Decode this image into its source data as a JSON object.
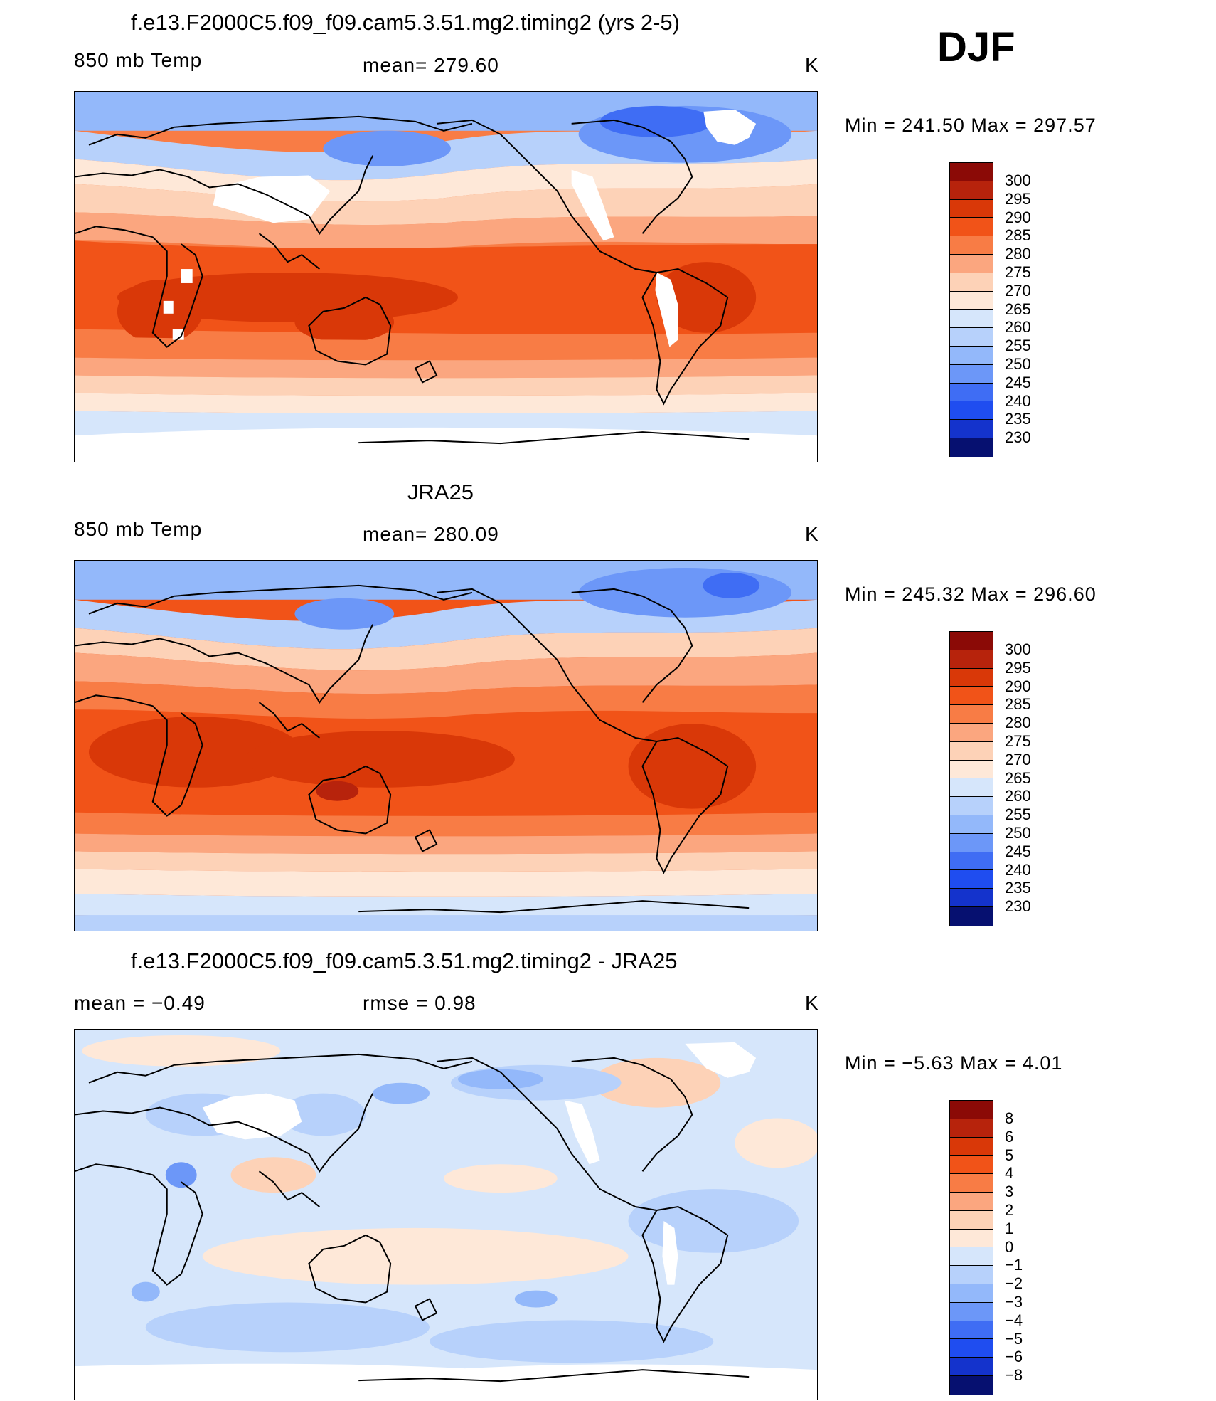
{
  "season": "DJF",
  "colors": {
    "abs_scale": [
      "#8b0a06",
      "#b7230c",
      "#d93808",
      "#f15318",
      "#f87c45",
      "#fba67f",
      "#fdd2b7",
      "#fee8d8",
      "#d6e6fb",
      "#b7d1fb",
      "#93b8fa",
      "#6c97f8",
      "#3f6df4",
      "#1f4df0",
      "#1433cc",
      "#0c1e99",
      "#061070"
    ],
    "diff_scale": [
      "#8b0a06",
      "#b7230c",
      "#d93808",
      "#f15318",
      "#f87c45",
      "#fba67f",
      "#fdd2b7",
      "#fee8d8",
      "#d6e6fb",
      "#b7d1fb",
      "#93b8fa",
      "#6c97f8",
      "#3f6df4",
      "#1f4df0",
      "#1433cc",
      "#0c1e99",
      "#061070"
    ]
  },
  "panels": [
    {
      "title": "f.e13.F2000C5.f09_f09.cam5.3.51.mg2.timing2 (yrs 2-5)",
      "left_label": "850 mb Temp",
      "center_label": "mean=  279.60",
      "units": "K",
      "minmax": "Min  =  241.50  Max  =  297.57",
      "colorbar_labels": [
        "300",
        "295",
        "290",
        "285",
        "280",
        "275",
        "270",
        "265",
        "260",
        "255",
        "250",
        "245",
        "240",
        "235",
        "230"
      ]
    },
    {
      "title": "JRA25",
      "left_label": "850 mb Temp",
      "center_label": "mean=  280.09",
      "units": "K",
      "minmax": "Min  =  245.32  Max  =  296.60",
      "colorbar_labels": [
        "300",
        "295",
        "290",
        "285",
        "280",
        "275",
        "270",
        "265",
        "260",
        "255",
        "250",
        "245",
        "240",
        "235",
        "230"
      ]
    },
    {
      "title": "f.e13.F2000C5.f09_f09.cam5.3.51.mg2.timing2 - JRA25",
      "left_label": "mean  =    −0.49",
      "center_label": "rmse  =     0.98",
      "units": "K",
      "minmax": "Min  =    −5.63  Max  =      4.01",
      "colorbar_labels": [
        "8",
        "6",
        "5",
        "4",
        "3",
        "2",
        "1",
        "0",
        "−1",
        "−2",
        "−3",
        "−4",
        "−5",
        "−6",
        "−8"
      ]
    }
  ]
}
